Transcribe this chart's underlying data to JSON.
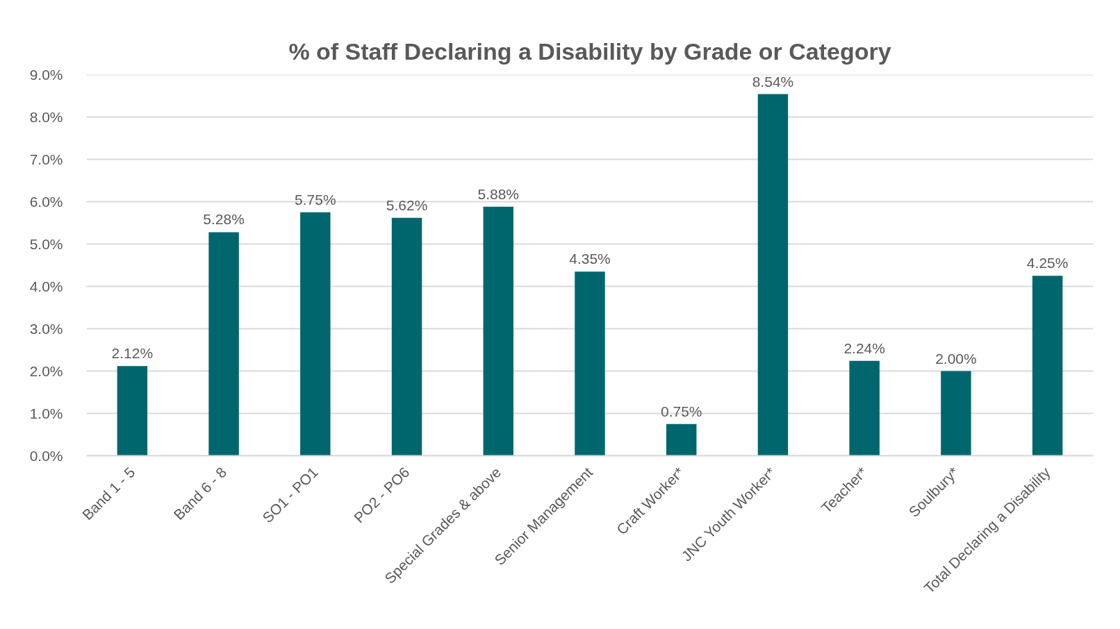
{
  "chart_data": {
    "type": "bar",
    "title": "% of Staff Declaring a Disability by Grade or Category",
    "categories": [
      "Band 1 - 5",
      "Band 6 - 8",
      "SO1 - PO1",
      "PO2 - PO6",
      "Special Grades & above",
      "Senior Management",
      "Craft Worker*",
      "JNC Youth Worker*",
      "Teacher*",
      "Soulbury*",
      "Total Declaring a Disability"
    ],
    "values": [
      2.12,
      5.28,
      5.75,
      5.62,
      5.88,
      4.35,
      0.75,
      8.54,
      2.24,
      2.0,
      4.25
    ],
    "value_labels": [
      "2.12%",
      "5.28%",
      "5.75%",
      "5.62%",
      "5.88%",
      "4.35%",
      "0.75%",
      "8.54%",
      "2.24%",
      "2.00%",
      "4.25%"
    ],
    "color": "#00666e",
    "ylim": [
      0,
      9
    ],
    "yticks": [
      {
        "value": 0,
        "label": "0.0%"
      },
      {
        "value": 1,
        "label": "1.0%"
      },
      {
        "value": 2,
        "label": "2.0%"
      },
      {
        "value": 3,
        "label": "3.0%"
      },
      {
        "value": 4,
        "label": "4.0%"
      },
      {
        "value": 5,
        "label": "5.0%"
      },
      {
        "value": 6,
        "label": "6.0%"
      },
      {
        "value": 7,
        "label": "7.0%"
      },
      {
        "value": 8,
        "label": "8.0%"
      },
      {
        "value": 9,
        "label": "9.0%"
      }
    ],
    "grid": "y"
  }
}
